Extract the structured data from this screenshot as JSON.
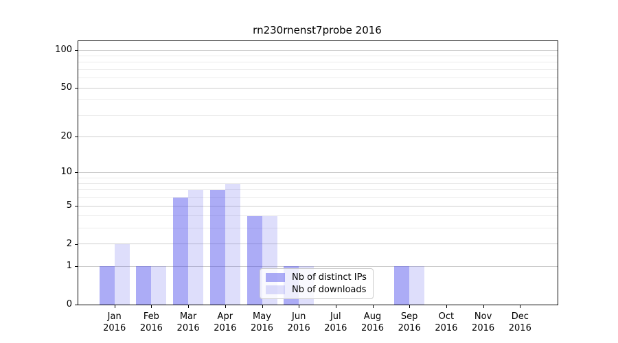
{
  "title": "rn230rnenst7probe 2016",
  "legend": {
    "items": [
      {
        "label": "Nb of distinct IPs",
        "color": "rgba(70,70,235,0.45)"
      },
      {
        "label": "Nb of downloads",
        "color": "rgba(70,70,235,0.18)"
      }
    ]
  },
  "axes": {
    "y_major_ticks": [
      0,
      1,
      2,
      5,
      10,
      20,
      50,
      100
    ],
    "y_minor_ticks": [
      3,
      4,
      6,
      7,
      8,
      9,
      30,
      40,
      60,
      70,
      80,
      90
    ]
  },
  "chart_data": {
    "type": "bar",
    "title": "rn230rnenst7probe 2016",
    "categories": [
      "Jan 2016",
      "Feb 2016",
      "Mar 2016",
      "Apr 2016",
      "May 2016",
      "Jun 2016",
      "Jul 2016",
      "Aug 2016",
      "Sep 2016",
      "Oct 2016",
      "Nov 2016",
      "Dec 2016"
    ],
    "series": [
      {
        "name": "Nb of distinct IPs",
        "color": "rgba(70,70,235,0.45)",
        "values": [
          1,
          1,
          6,
          7,
          4,
          1,
          0,
          0,
          1,
          0,
          0,
          0
        ]
      },
      {
        "name": "Nb of downloads",
        "color": "rgba(70,70,235,0.18)",
        "values": [
          2,
          1,
          7,
          8,
          4,
          1,
          0,
          0,
          1,
          0,
          0,
          0
        ]
      }
    ],
    "xlabel": "",
    "ylabel": "",
    "yscale": "log1p",
    "ylim": [
      0,
      118
    ],
    "y_major_ticks": [
      0,
      1,
      2,
      5,
      10,
      20,
      50,
      100
    ],
    "grid": true,
    "legend_position": "inside lower-center"
  },
  "colors": {
    "grid_major": "#cccccc",
    "grid_minor": "#ebebeb",
    "spine": "#000000",
    "background": "#ffffff",
    "legend_border": "#cccccc",
    "legend_background": "rgba(255,255,255,0.8)"
  }
}
